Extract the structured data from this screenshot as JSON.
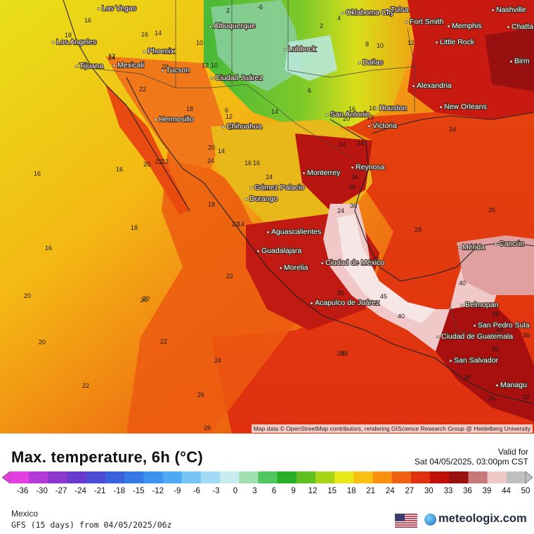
{
  "title": "Max. temperature, 6h (°C)",
  "valid": {
    "label": "Valid for",
    "time": "Sat 04/05/2025, 03:00pm CST"
  },
  "attribution": "Map data © OpenStreetMap contributors, rendering GIScience Research Group @ Heidelberg University",
  "region": "Mexico",
  "model": "GFS (15 days) from 04/05/2025/06z",
  "brand": "meteologix.com",
  "scale": {
    "ticks": [
      "-36",
      "-30",
      "-27",
      "-24",
      "-21",
      "-18",
      "-15",
      "-12",
      "-9",
      "-6",
      "-3",
      "0",
      "3",
      "6",
      "9",
      "12",
      "15",
      "18",
      "21",
      "24",
      "27",
      "30",
      "33",
      "36",
      "39",
      "44",
      "50"
    ],
    "colors": [
      "#e43ee0",
      "#b33ad8",
      "#8a36cf",
      "#6a3ad0",
      "#4e4bd6",
      "#3a62de",
      "#3479e6",
      "#3c92ee",
      "#4eaaf2",
      "#74c4f5",
      "#a3daf6",
      "#c8ecf0",
      "#a0e0b0",
      "#50c860",
      "#28b028",
      "#60c020",
      "#a8d418",
      "#e8e818",
      "#f8c010",
      "#f89010",
      "#f06010",
      "#e03010",
      "#c01008",
      "#981010",
      "#c87878",
      "#f0c8c8",
      "#c0c0c0"
    ]
  },
  "cities": [
    {
      "name": "Las Vegas"
    },
    {
      "name": "Los Angeles"
    },
    {
      "name": "Tijuana"
    },
    {
      "name": "Mexicali"
    },
    {
      "name": "Phoenix"
    },
    {
      "name": "Tucson"
    },
    {
      "name": "Albuquerque"
    },
    {
      "name": "Lubbock"
    },
    {
      "name": "Oklahoma City"
    },
    {
      "name": "Tulsa"
    },
    {
      "name": "Fort Smith"
    },
    {
      "name": "Memphis"
    },
    {
      "name": "Nashville"
    },
    {
      "name": "Chatta"
    },
    {
      "name": "Little Rock"
    },
    {
      "name": "Birm"
    },
    {
      "name": "Dallas"
    },
    {
      "name": "Ciudad Juárez"
    },
    {
      "name": "Hermosillo"
    },
    {
      "name": "Chihuahua"
    },
    {
      "name": "San Antonio"
    },
    {
      "name": "Houston"
    },
    {
      "name": "Alexandria"
    },
    {
      "name": "New Orleans"
    },
    {
      "name": "Victoria"
    },
    {
      "name": "Monterrey"
    },
    {
      "name": "Reynosa"
    },
    {
      "name": "Gómez Palacio"
    },
    {
      "name": "Durango"
    },
    {
      "name": "Aguascalientes"
    },
    {
      "name": "Guadalajara"
    },
    {
      "name": "Morelia"
    },
    {
      "name": "Ciudad de México"
    },
    {
      "name": "Acapulco de Juárez"
    },
    {
      "name": "Mérida"
    },
    {
      "name": "Cancún"
    },
    {
      "name": "Belmopan"
    },
    {
      "name": "San Pedro Sula"
    },
    {
      "name": "Ciudad de Guatemala"
    },
    {
      "name": "San Salvador"
    },
    {
      "name": "Managu"
    }
  ],
  "contour_labels": [
    "16",
    "18",
    "16",
    "14",
    "10",
    "2",
    "-6",
    "2",
    "4",
    "6",
    "8",
    "10",
    "12",
    "24",
    "22",
    "22",
    "12",
    "10",
    "14",
    "16",
    "18",
    "20",
    "24",
    "12",
    "20",
    "12",
    "16",
    "16",
    "14",
    "22",
    "18",
    "24",
    "24",
    "24",
    "14",
    "22",
    "20",
    "16",
    "16",
    "18",
    "20",
    "20",
    "20",
    "24",
    "22",
    "22",
    "28",
    "36",
    "45",
    "40",
    "36",
    "40",
    "22",
    "22",
    "24",
    "24",
    "26",
    "28",
    "26",
    "26",
    "26",
    "36",
    "40",
    "36",
    "36",
    "30",
    "30",
    "32",
    "26",
    "26",
    "28",
    "16",
    "20",
    "13",
    "6",
    "8",
    "16"
  ]
}
